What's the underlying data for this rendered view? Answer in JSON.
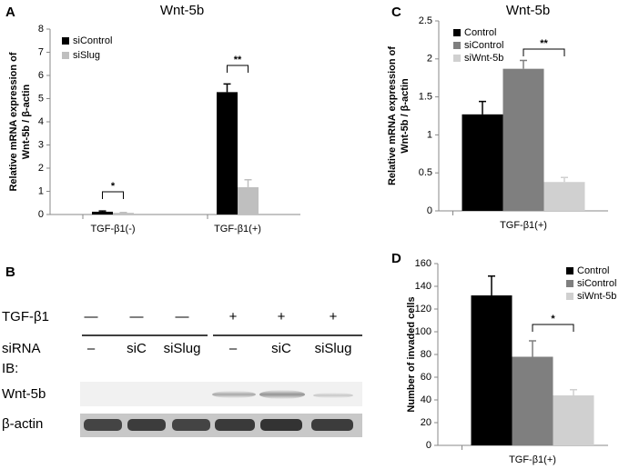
{
  "chart_data": [
    {
      "type": "bar",
      "panel": "A",
      "title": "Wnt-5b",
      "ylabel": [
        "Relative mRNA expression of",
        "Wnt-5b / β-actin"
      ],
      "categories": [
        "TGF-β1(-)",
        "TGF-β1(+)"
      ],
      "series": [
        {
          "name": "siControl",
          "color": "#000000",
          "values": [
            0.12,
            5.28
          ],
          "errors": [
            0.03,
            0.35
          ]
        },
        {
          "name": "siSlug",
          "color": "#bfbfbf",
          "values": [
            0.07,
            1.18
          ],
          "errors": [
            0.02,
            0.32
          ]
        }
      ],
      "ylim": [
        0,
        8
      ],
      "yticks": [
        0,
        1,
        2,
        3,
        4,
        5,
        6,
        7,
        8
      ],
      "annotations": [
        "*",
        "**"
      ]
    },
    {
      "type": "bar",
      "panel": "C",
      "title": "Wnt-5b",
      "ylabel": [
        "Relative mRNA expression of",
        "Wnt-5b / β-actin"
      ],
      "categories": [
        "TGF-β1(+)"
      ],
      "series": [
        {
          "name": "Control",
          "color": "#000000",
          "values": [
            1.27
          ],
          "errors": [
            0.17
          ]
        },
        {
          "name": "siControl",
          "color": "#7f7f7f",
          "values": [
            1.87
          ],
          "errors": [
            0.11
          ]
        },
        {
          "name": "siWnt-5b",
          "color": "#d0d0d0",
          "values": [
            0.38
          ],
          "errors": [
            0.06
          ]
        }
      ],
      "ylim": [
        0,
        2.5
      ],
      "yticks": [
        0,
        0.5,
        1,
        1.5,
        2,
        2.5
      ],
      "annotations": [
        "**"
      ]
    },
    {
      "type": "bar",
      "panel": "D",
      "ylabel": [
        "Number of invaded cells"
      ],
      "categories": [
        "TGF-β1(+)"
      ],
      "series": [
        {
          "name": "Control",
          "color": "#000000",
          "values": [
            132
          ],
          "errors": [
            17
          ]
        },
        {
          "name": "siControl",
          "color": "#7f7f7f",
          "values": [
            78
          ],
          "errors": [
            14
          ]
        },
        {
          "name": "siWnt-5b",
          "color": "#d0d0d0",
          "values": [
            44
          ],
          "errors": [
            5
          ]
        }
      ],
      "ylim": [
        0,
        160
      ],
      "yticks": [
        0,
        20,
        40,
        60,
        80,
        100,
        120,
        140,
        160
      ],
      "annotations": [
        "*"
      ]
    }
  ],
  "blot": {
    "panel": "B",
    "rows": [
      {
        "label": "TGF-β1",
        "lanes": [
          "—",
          "—",
          "—",
          "+",
          "+",
          "+"
        ]
      },
      {
        "label": "siRNA",
        "lanes": [
          "–",
          "siC",
          "siSlug",
          "–",
          "siC",
          "siSlug"
        ]
      }
    ],
    "ib": "IB:",
    "bands": [
      "Wnt-5b",
      "β-actin"
    ]
  }
}
